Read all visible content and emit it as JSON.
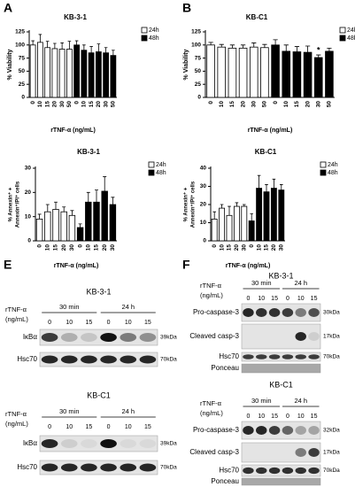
{
  "chart_data": [
    {
      "type": "bar",
      "panel": "A",
      "title": "KB-3-1",
      "ylabel": "% Viability",
      "xlabel": "rTNF-α (ng/mL)",
      "categories": [
        "0",
        "10",
        "15",
        "20",
        "30",
        "50",
        "0",
        "10",
        "15",
        "20",
        "30",
        "50"
      ],
      "series": [
        {
          "name": "24h",
          "color": "#ffffff",
          "values": [
            100,
            105,
            95,
            93,
            92,
            92,
            null,
            null,
            null,
            null,
            null,
            null
          ],
          "errors": [
            8,
            15,
            12,
            10,
            12,
            15,
            null,
            null,
            null,
            null,
            null,
            null
          ]
        },
        {
          "name": "48h",
          "color": "#000000",
          "values": [
            null,
            null,
            null,
            null,
            null,
            null,
            100,
            90,
            85,
            87,
            85,
            80
          ],
          "errors": [
            null,
            null,
            null,
            null,
            null,
            null,
            8,
            10,
            12,
            15,
            10,
            10
          ]
        }
      ],
      "ylim": [
        0,
        125
      ],
      "yticks": [
        0,
        25,
        50,
        75,
        100,
        125
      ]
    },
    {
      "type": "bar",
      "panel": "B",
      "title": "KB-C1",
      "ylabel": "% Viability",
      "xlabel": "rTNF-α (ng/mL)",
      "annotation": "*",
      "categories": [
        "0",
        "10",
        "15",
        "20",
        "30",
        "50",
        "0",
        "10",
        "15",
        "20",
        "30",
        "50"
      ],
      "series": [
        {
          "name": "24h",
          "color": "#ffffff",
          "values": [
            100,
            96,
            94,
            94,
            96,
            95,
            null,
            null,
            null,
            null,
            null,
            null
          ],
          "errors": [
            5,
            5,
            6,
            6,
            8,
            6,
            null,
            null,
            null,
            null,
            null,
            null
          ]
        },
        {
          "name": "48h",
          "color": "#000000",
          "values": [
            null,
            null,
            null,
            null,
            null,
            null,
            100,
            88,
            87,
            86,
            76,
            88
          ],
          "errors": [
            null,
            null,
            null,
            null,
            null,
            null,
            10,
            12,
            10,
            12,
            5,
            6
          ]
        }
      ],
      "ylim": [
        0,
        125
      ],
      "yticks": [
        0,
        25,
        50,
        75,
        100,
        125
      ]
    },
    {
      "type": "bar",
      "title": "KB-3-1",
      "ylabel": [
        "% Annexin⁺ +",
        "Annexin⁺/PI⁺ cells"
      ],
      "xlabel": "rTNF-α (ng/mL)",
      "categories": [
        "0",
        "10",
        "15",
        "20",
        "30",
        "0",
        "10",
        "15",
        "20",
        "30"
      ],
      "series": [
        {
          "name": "24h",
          "color": "#ffffff",
          "values": [
            9,
            12,
            13,
            12,
            10.5,
            null,
            null,
            null,
            null,
            null
          ],
          "errors": [
            2,
            3,
            3,
            2,
            2,
            null,
            null,
            null,
            null,
            null
          ]
        },
        {
          "name": "48h",
          "color": "#000000",
          "values": [
            null,
            null,
            null,
            null,
            null,
            5.5,
            16,
            16,
            20.5,
            15
          ],
          "errors": [
            null,
            null,
            null,
            null,
            null,
            1.5,
            4,
            5,
            6,
            3
          ]
        }
      ],
      "ylim": [
        0,
        30
      ],
      "yticks": [
        0,
        10,
        20,
        30
      ]
    },
    {
      "type": "bar",
      "title": "KB-C1",
      "ylabel": [
        "% Annexin⁺ +",
        "Annexin⁺/PI⁺ cells"
      ],
      "xlabel": "rTNF-α (ng/mL)",
      "categories": [
        "0",
        "10",
        "15",
        "20",
        "30",
        "0",
        "10",
        "15",
        "20",
        "30"
      ],
      "series": [
        {
          "name": "24h",
          "color": "#ffffff",
          "values": [
            12,
            18,
            14,
            19,
            19,
            null,
            null,
            null,
            null,
            null
          ],
          "errors": [
            4,
            2,
            5,
            2,
            1,
            null,
            null,
            null,
            null,
            null
          ]
        },
        {
          "name": "48h",
          "color": "#000000",
          "values": [
            null,
            null,
            null,
            null,
            null,
            11,
            29,
            27,
            29,
            28
          ],
          "errors": [
            null,
            null,
            null,
            null,
            null,
            4,
            7,
            4,
            5,
            3
          ]
        }
      ],
      "ylim": [
        0,
        40
      ],
      "yticks": [
        0,
        10,
        20,
        30,
        40
      ]
    }
  ],
  "blots": [
    {
      "panel": "E",
      "title": "KB-3-1",
      "treatment": [
        "rTNF-α",
        "(ng/mL)"
      ],
      "timepoints": [
        "30 min",
        "24 h"
      ],
      "lanes": [
        "0",
        "10",
        "15",
        "0",
        "10",
        "15"
      ],
      "rows": [
        {
          "label": "IκBα",
          "marker": "39kDa"
        },
        {
          "label": "Hsc70",
          "marker": "70kDa"
        }
      ]
    },
    {
      "title": "KB-C1",
      "treatment": [
        "rTNF-α",
        "(ng/mL)"
      ],
      "timepoints": [
        "30 min",
        "24 h"
      ],
      "lanes": [
        "0",
        "10",
        "15",
        "0",
        "10",
        "15"
      ],
      "rows": [
        {
          "label": "IκBα",
          "marker": "39kDa"
        },
        {
          "label": "Hsc70",
          "marker": "70kDa"
        }
      ]
    },
    {
      "panel": "F",
      "title": "KB-3-1",
      "treatment": [
        "rTNF-α",
        "(ng/mL)"
      ],
      "timepoints": [
        "30 min",
        "24 h"
      ],
      "lanes": [
        "0",
        "10",
        "15",
        "0",
        "10",
        "15"
      ],
      "rows": [
        {
          "label": "Pro-caspase-3",
          "marker": "30kDa"
        },
        {
          "label": "Cleaved casp-3",
          "marker": "17kDa"
        },
        {
          "label": "Hsc70",
          "marker": "70kDa"
        },
        {
          "label": "Ponceau"
        }
      ]
    },
    {
      "title": "KB-C1",
      "treatment": [
        "rTNF-α",
        "(ng/mL)"
      ],
      "timepoints": [
        "30 min",
        "24 h"
      ],
      "lanes": [
        "0",
        "10",
        "15",
        "0",
        "10",
        "15"
      ],
      "rows": [
        {
          "label": "Pro-caspase-3",
          "marker": "32kDa"
        },
        {
          "label": "Cleaved casp-3",
          "marker": "17kDa"
        },
        {
          "label": "Hsc70",
          "marker": "70kDa"
        },
        {
          "label": "Ponceau"
        }
      ]
    }
  ]
}
